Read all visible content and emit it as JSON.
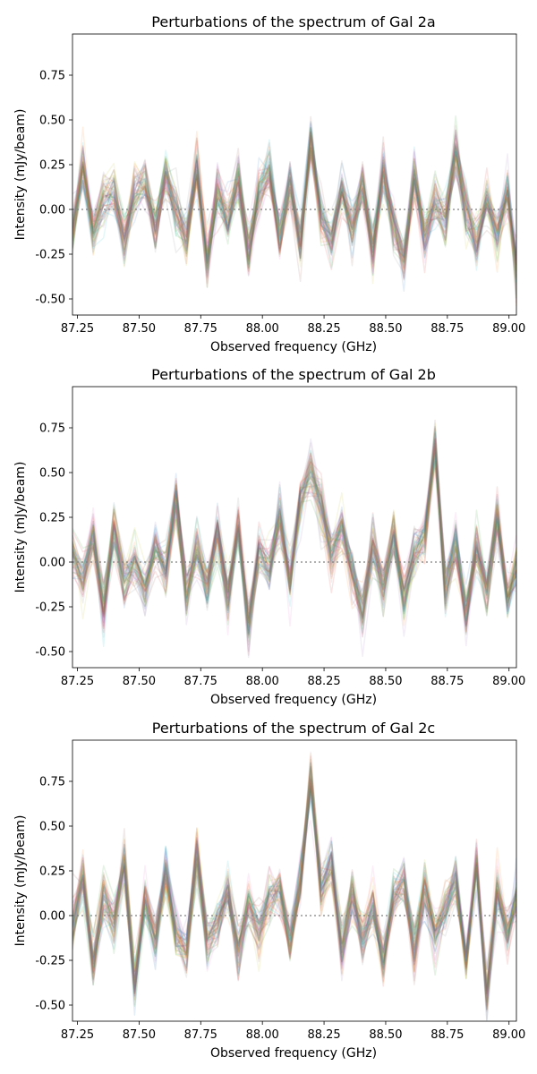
{
  "chart_data": [
    {
      "type": "line",
      "title": "Perturbations of the spectrum of Gal 2a",
      "xlabel": "Observed frequency (GHz)",
      "ylabel": "Intensity (mJy/beam)",
      "xlim": [
        87.23,
        89.03
      ],
      "ylim": [
        -0.59,
        0.98
      ],
      "xticks": [
        87.25,
        87.5,
        87.75,
        88.0,
        88.25,
        88.5,
        88.75,
        89.0
      ],
      "xtick_labels": [
        "87.25",
        "87.50",
        "87.75",
        "88.00",
        "88.25",
        "88.50",
        "88.75",
        "89.00"
      ],
      "yticks": [
        -0.5,
        -0.25,
        0.0,
        0.25,
        0.5,
        0.75
      ],
      "ytick_labels": [
        "-0.50",
        "-0.25",
        "0.00",
        "0.25",
        "0.50",
        "0.75"
      ],
      "zero_line": true,
      "grid": false,
      "n_perturbations": 60,
      "noise_sigma": 0.07,
      "x": [
        87.23,
        87.272,
        87.314,
        87.356,
        87.398,
        87.44,
        87.482,
        87.524,
        87.566,
        87.608,
        87.65,
        87.692,
        87.734,
        87.776,
        87.818,
        87.86,
        87.902,
        87.944,
        87.986,
        88.028,
        88.07,
        88.112,
        88.154,
        88.196,
        88.238,
        88.28,
        88.322,
        88.364,
        88.406,
        88.448,
        88.49,
        88.532,
        88.574,
        88.616,
        88.658,
        88.7,
        88.742,
        88.784,
        88.826,
        88.868,
        88.91,
        88.952,
        88.994,
        89.03
      ],
      "values": [
        -0.15,
        0.25,
        -0.12,
        0.05,
        0.1,
        -0.18,
        0.08,
        0.15,
        -0.1,
        0.2,
        -0.02,
        -0.15,
        0.25,
        -0.28,
        0.12,
        -0.05,
        0.18,
        -0.25,
        0.1,
        0.22,
        -0.15,
        0.15,
        -0.2,
        0.4,
        -0.05,
        -0.18,
        0.12,
        -0.1,
        0.15,
        -0.22,
        0.2,
        -0.08,
        -0.28,
        0.18,
        -0.15,
        0.05,
        -0.05,
        0.3,
        0.0,
        -0.2,
        0.05,
        -0.15,
        0.1,
        -0.35
      ]
    },
    {
      "type": "line",
      "title": "Perturbations of the spectrum of Gal 2b",
      "xlabel": "Observed frequency (GHz)",
      "ylabel": "Intensity (mJy/beam)",
      "xlim": [
        87.23,
        89.03
      ],
      "ylim": [
        -0.59,
        0.98
      ],
      "xticks": [
        87.25,
        87.5,
        87.75,
        88.0,
        88.25,
        88.5,
        88.75,
        89.0
      ],
      "xtick_labels": [
        "87.25",
        "87.50",
        "87.75",
        "88.00",
        "88.25",
        "88.50",
        "88.75",
        "89.00"
      ],
      "yticks": [
        -0.5,
        -0.25,
        0.0,
        0.25,
        0.5,
        0.75
      ],
      "ytick_labels": [
        "-0.50",
        "-0.25",
        "0.00",
        "0.25",
        "0.50",
        "0.75"
      ],
      "zero_line": true,
      "grid": false,
      "n_perturbations": 60,
      "noise_sigma": 0.07,
      "x": [
        87.23,
        87.272,
        87.314,
        87.356,
        87.398,
        87.44,
        87.482,
        87.524,
        87.566,
        87.608,
        87.65,
        87.692,
        87.734,
        87.776,
        87.818,
        87.86,
        87.902,
        87.944,
        87.986,
        88.028,
        88.07,
        88.112,
        88.154,
        88.196,
        88.238,
        88.28,
        88.322,
        88.364,
        88.406,
        88.448,
        88.49,
        88.532,
        88.574,
        88.616,
        88.658,
        88.7,
        88.742,
        88.784,
        88.826,
        88.868,
        88.91,
        88.952,
        88.994,
        89.03
      ],
      "values": [
        0.05,
        -0.1,
        0.15,
        -0.25,
        0.2,
        -0.12,
        0.0,
        -0.15,
        0.1,
        -0.05,
        0.35,
        -0.18,
        0.05,
        -0.12,
        0.15,
        -0.2,
        0.18,
        -0.35,
        0.05,
        -0.05,
        0.25,
        -0.1,
        0.35,
        0.5,
        0.3,
        0.05,
        0.2,
        -0.05,
        -0.3,
        0.1,
        -0.15,
        0.15,
        -0.2,
        0.05,
        0.15,
        0.65,
        -0.15,
        0.1,
        -0.3,
        0.1,
        -0.15,
        0.25,
        -0.2,
        -0.05
      ]
    },
    {
      "type": "line",
      "title": "Perturbations of the spectrum of Gal 2c",
      "xlabel": "Observed frequency (GHz)",
      "ylabel": "Intensity (mJy/beam)",
      "xlim": [
        87.23,
        89.03
      ],
      "ylim": [
        -0.59,
        0.98
      ],
      "xticks": [
        87.25,
        87.5,
        87.75,
        88.0,
        88.25,
        88.5,
        88.75,
        89.0
      ],
      "xtick_labels": [
        "87.25",
        "87.50",
        "87.75",
        "88.00",
        "88.25",
        "88.50",
        "88.75",
        "89.00"
      ],
      "yticks": [
        -0.5,
        -0.25,
        0.0,
        0.25,
        0.5,
        0.75
      ],
      "ytick_labels": [
        "-0.50",
        "-0.25",
        "0.00",
        "0.25",
        "0.50",
        "0.75"
      ],
      "zero_line": true,
      "grid": false,
      "n_perturbations": 60,
      "noise_sigma": 0.07,
      "x": [
        87.23,
        87.272,
        87.314,
        87.356,
        87.398,
        87.44,
        87.482,
        87.524,
        87.566,
        87.608,
        87.65,
        87.692,
        87.734,
        87.776,
        87.818,
        87.86,
        87.902,
        87.944,
        87.986,
        88.028,
        88.07,
        88.112,
        88.154,
        88.196,
        88.238,
        88.28,
        88.322,
        88.364,
        88.406,
        88.448,
        88.49,
        88.532,
        88.574,
        88.616,
        88.658,
        88.7,
        88.742,
        88.784,
        88.826,
        88.868,
        88.91,
        88.952,
        88.994,
        89.03
      ],
      "values": [
        -0.05,
        0.2,
        -0.25,
        0.1,
        -0.05,
        0.3,
        -0.4,
        0.1,
        -0.15,
        0.25,
        -0.1,
        -0.2,
        0.35,
        -0.15,
        -0.05,
        0.15,
        -0.2,
        0.05,
        -0.1,
        0.1,
        0.15,
        -0.15,
        0.2,
        0.75,
        0.15,
        0.3,
        -0.2,
        0.1,
        -0.15,
        0.05,
        -0.25,
        0.1,
        0.2,
        -0.2,
        0.15,
        -0.1,
        0.05,
        0.2,
        -0.25,
        0.3,
        -0.45,
        0.15,
        -0.1,
        0.1
      ]
    }
  ]
}
